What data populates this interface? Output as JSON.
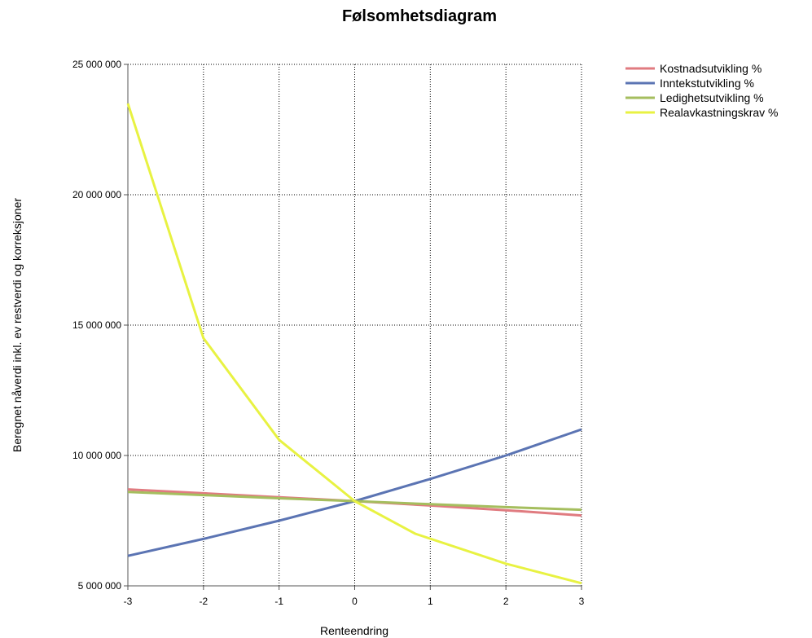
{
  "chart_data": {
    "type": "line",
    "title": "Følsomhetsdiagram",
    "xlabel": "Renteendring",
    "ylabel": "Beregnet nåverdi inkl. ev restverdi og korreksjoner",
    "xlim": [
      -3,
      3
    ],
    "ylim": [
      5000000,
      25000000
    ],
    "x_ticks": [
      -3,
      -2,
      -1,
      0,
      1,
      2,
      3
    ],
    "y_ticks": [
      5000000,
      10000000,
      15000000,
      20000000,
      25000000
    ],
    "x_tick_labels": [
      "-3",
      "-2",
      "-1",
      "0",
      "1",
      "2",
      "3"
    ],
    "y_tick_labels": [
      "5 000 000",
      "10 000 000",
      "15 000 000",
      "20 000 000",
      "25 000 000"
    ],
    "grid": true,
    "legend_position": "top-right, outside",
    "series": [
      {
        "name": "Kostnadsutvikling %",
        "color": "#e07b80",
        "x": [
          -3,
          -2,
          -1,
          0,
          1,
          2,
          3
        ],
        "y": [
          8700000,
          8550000,
          8400000,
          8250000,
          8080000,
          7900000,
          7700000
        ]
      },
      {
        "name": "Inntekstutvikling %",
        "color": "#5b74b3",
        "x": [
          -3,
          -2,
          -1,
          0,
          1,
          2,
          3
        ],
        "y": [
          6150000,
          6800000,
          7500000,
          8250000,
          9100000,
          10000000,
          11000000
        ]
      },
      {
        "name": "Ledighetsutvikling %",
        "color": "#a5be5e",
        "x": [
          -3,
          -2,
          -1,
          0,
          1,
          2,
          3
        ],
        "y": [
          8600000,
          8480000,
          8360000,
          8250000,
          8130000,
          8020000,
          7920000
        ]
      },
      {
        "name": "Realavkastningskrav %",
        "color": "#e8f242",
        "x": [
          -3,
          -2,
          -1,
          0,
          0.8,
          2,
          3
        ],
        "y": [
          23500000,
          14500000,
          10600000,
          8250000,
          7000000,
          5850000,
          5100000
        ]
      }
    ]
  }
}
